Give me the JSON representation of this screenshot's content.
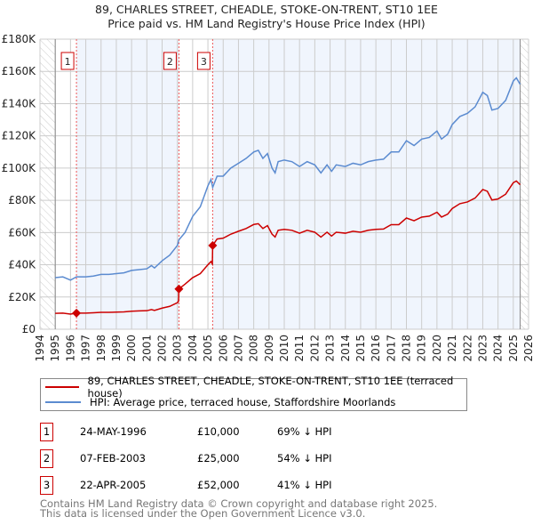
{
  "chart_data": {
    "type": "line",
    "title": "89, CHARLES STREET, CHEADLE, STOKE-ON-TRENT, ST10 1EE",
    "subtitle": "Price paid vs. HM Land Registry's House Price Index (HPI)",
    "xlim": [
      1994,
      2026
    ],
    "ylim": [
      0,
      180000
    ],
    "x_ticks": [
      "1994",
      "1995",
      "1996",
      "1997",
      "1998",
      "1999",
      "2000",
      "2001",
      "2002",
      "2003",
      "2004",
      "2005",
      "2006",
      "2007",
      "2008",
      "2009",
      "2010",
      "2011",
      "2012",
      "2013",
      "2014",
      "2015",
      "2016",
      "2017",
      "2018",
      "2019",
      "2020",
      "2021",
      "2022",
      "2023",
      "2024",
      "2025",
      "2026"
    ],
    "y_ticks": [
      {
        "v": 0,
        "label": "£0"
      },
      {
        "v": 20000,
        "label": "£20K"
      },
      {
        "v": 40000,
        "label": "£40K"
      },
      {
        "v": 60000,
        "label": "£60K"
      },
      {
        "v": 80000,
        "label": "£80K"
      },
      {
        "v": 100000,
        "label": "£100K"
      },
      {
        "v": 120000,
        "label": "£120K"
      },
      {
        "v": 140000,
        "label": "£140K"
      },
      {
        "v": 160000,
        "label": "£160K"
      },
      {
        "v": 180000,
        "label": "£180K"
      }
    ],
    "grid": true,
    "data_range": [
      1995,
      2025.45
    ],
    "series": [
      {
        "name": "89, CHARLES STREET, CHEADLE, STOKE-ON-TRENT, ST10 1EE (terraced house)",
        "color": "#cc0000",
        "points": [
          [
            1995,
            9900
          ],
          [
            1995.5,
            10000
          ],
          [
            1996,
            9400
          ],
          [
            1996.39,
            10000
          ],
          [
            1997,
            10000
          ],
          [
            1997.5,
            10200
          ],
          [
            1998,
            10500
          ],
          [
            1998.5,
            10500
          ],
          [
            1999,
            10600
          ],
          [
            1999.5,
            10800
          ],
          [
            2000,
            11200
          ],
          [
            2000.5,
            11400
          ],
          [
            2001,
            11500
          ],
          [
            2001.3,
            12200
          ],
          [
            2001.5,
            11700
          ],
          [
            2002,
            13100
          ],
          [
            2002.5,
            14200
          ],
          [
            2003,
            16500
          ],
          [
            2003.08,
            17500
          ],
          [
            2003.1,
            25000
          ],
          [
            2003.5,
            28000
          ],
          [
            2004,
            32000
          ],
          [
            2004.5,
            34500
          ],
          [
            2005,
            40000
          ],
          [
            2005.2,
            42000
          ],
          [
            2005.29,
            40500
          ],
          [
            2005.31,
            52000
          ],
          [
            2005.6,
            56000
          ],
          [
            2006,
            56500
          ],
          [
            2006.5,
            59000
          ],
          [
            2007,
            60800
          ],
          [
            2007.5,
            62500
          ],
          [
            2008,
            65000
          ],
          [
            2008.3,
            65500
          ],
          [
            2008.6,
            62500
          ],
          [
            2008.9,
            64300
          ],
          [
            2009.2,
            59000
          ],
          [
            2009.4,
            57200
          ],
          [
            2009.6,
            61400
          ],
          [
            2010,
            62000
          ],
          [
            2010.5,
            61400
          ],
          [
            2011,
            59600
          ],
          [
            2011.5,
            61400
          ],
          [
            2012,
            60200
          ],
          [
            2012.4,
            57200
          ],
          [
            2012.8,
            60200
          ],
          [
            2013.1,
            57800
          ],
          [
            2013.4,
            60200
          ],
          [
            2014,
            59600
          ],
          [
            2014.5,
            60800
          ],
          [
            2015,
            60200
          ],
          [
            2015.5,
            61400
          ],
          [
            2016,
            62000
          ],
          [
            2016.5,
            62200
          ],
          [
            2017,
            64900
          ],
          [
            2017.5,
            64900
          ],
          [
            2018,
            69000
          ],
          [
            2018.5,
            67300
          ],
          [
            2019,
            69600
          ],
          [
            2019.5,
            70200
          ],
          [
            2020,
            72600
          ],
          [
            2020.3,
            69600
          ],
          [
            2020.7,
            71400
          ],
          [
            2021,
            74900
          ],
          [
            2021.5,
            77900
          ],
          [
            2022,
            79000
          ],
          [
            2022.5,
            81400
          ],
          [
            2023,
            86700
          ],
          [
            2023.3,
            85600
          ],
          [
            2023.6,
            80200
          ],
          [
            2024,
            80800
          ],
          [
            2024.5,
            83800
          ],
          [
            2025,
            90900
          ],
          [
            2025.2,
            92000
          ],
          [
            2025.45,
            89700
          ]
        ]
      },
      {
        "name": "HPI: Average price, terraced house, Staffordshire Moorlands",
        "color": "#5b8bd0",
        "points": [
          [
            1995,
            32000
          ],
          [
            1995.5,
            32500
          ],
          [
            1996,
            30500
          ],
          [
            1996.39,
            32500
          ],
          [
            1997,
            32500
          ],
          [
            1997.5,
            33000
          ],
          [
            1998,
            34000
          ],
          [
            1998.5,
            34000
          ],
          [
            1999,
            34500
          ],
          [
            1999.5,
            35000
          ],
          [
            2000,
            36500
          ],
          [
            2000.5,
            37000
          ],
          [
            2001,
            37500
          ],
          [
            2001.3,
            39500
          ],
          [
            2001.5,
            38000
          ],
          [
            2002,
            42500
          ],
          [
            2002.5,
            46000
          ],
          [
            2003,
            52000
          ],
          [
            2003.1,
            55500
          ],
          [
            2003.5,
            60000
          ],
          [
            2004,
            70000
          ],
          [
            2004.5,
            76000
          ],
          [
            2005,
            89000
          ],
          [
            2005.2,
            93000
          ],
          [
            2005.31,
            88000
          ],
          [
            2005.6,
            95000
          ],
          [
            2006,
            95000
          ],
          [
            2006.5,
            100000
          ],
          [
            2007,
            103000
          ],
          [
            2007.5,
            106000
          ],
          [
            2008,
            110000
          ],
          [
            2008.3,
            111000
          ],
          [
            2008.6,
            106000
          ],
          [
            2008.9,
            109000
          ],
          [
            2009.2,
            100000
          ],
          [
            2009.4,
            97000
          ],
          [
            2009.6,
            104000
          ],
          [
            2010,
            105000
          ],
          [
            2010.5,
            104000
          ],
          [
            2011,
            101000
          ],
          [
            2011.5,
            104000
          ],
          [
            2012,
            102000
          ],
          [
            2012.4,
            97000
          ],
          [
            2012.8,
            102000
          ],
          [
            2013.1,
            98000
          ],
          [
            2013.4,
            102000
          ],
          [
            2014,
            101000
          ],
          [
            2014.5,
            103000
          ],
          [
            2015,
            102000
          ],
          [
            2015.5,
            104000
          ],
          [
            2016,
            105000
          ],
          [
            2016.5,
            105500
          ],
          [
            2017,
            110000
          ],
          [
            2017.5,
            110000
          ],
          [
            2018,
            117000
          ],
          [
            2018.5,
            114000
          ],
          [
            2019,
            118000
          ],
          [
            2019.5,
            119000
          ],
          [
            2020,
            123000
          ],
          [
            2020.3,
            118000
          ],
          [
            2020.7,
            121000
          ],
          [
            2021,
            127000
          ],
          [
            2021.5,
            132000
          ],
          [
            2022,
            134000
          ],
          [
            2022.5,
            138000
          ],
          [
            2023,
            147000
          ],
          [
            2023.3,
            145000
          ],
          [
            2023.6,
            136000
          ],
          [
            2024,
            137000
          ],
          [
            2024.5,
            142000
          ],
          [
            2025,
            154000
          ],
          [
            2025.2,
            156000
          ],
          [
            2025.45,
            152000
          ]
        ]
      }
    ],
    "sales": [
      {
        "label": "1",
        "x": 1996.39,
        "value": 10000
      },
      {
        "label": "2",
        "x": 2003.1,
        "value": 25000
      },
      {
        "label": "3",
        "x": 2005.31,
        "value": 52000
      }
    ]
  },
  "title_line1": "89, CHARLES STREET, CHEADLE, STOKE-ON-TRENT, ST10 1EE",
  "title_line2": "Price paid vs. HM Land Registry's House Price Index (HPI)",
  "legend": {
    "red": "89, CHARLES STREET, CHEADLE, STOKE-ON-TRENT, ST10 1EE (terraced house)",
    "blue": "HPI: Average price, terraced house, Staffordshire Moorlands"
  },
  "transactions": [
    {
      "num": "1",
      "date": "24-MAY-1996",
      "price": "£10,000",
      "hpi": "69% ↓ HPI"
    },
    {
      "num": "2",
      "date": "07-FEB-2003",
      "price": "£25,000",
      "hpi": "54% ↓ HPI"
    },
    {
      "num": "3",
      "date": "22-APR-2005",
      "price": "£52,000",
      "hpi": "41% ↓ HPI"
    }
  ],
  "footer": {
    "line1": "Contains HM Land Registry data © Crown copyright and database right 2025.",
    "line2": "This data is licensed under the Open Government Licence v3.0."
  }
}
